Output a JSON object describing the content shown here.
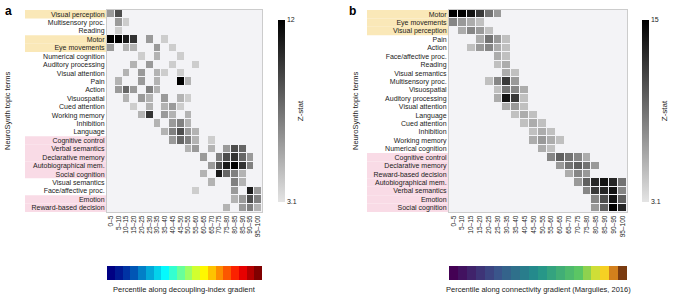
{
  "chart_data": [
    {
      "type": "heatmap",
      "panel_label": "a",
      "y_label": "NeuroSynth topic terms",
      "x_label": "Percentile along decoupling-index gradient",
      "x": [
        "0–5",
        "5–10",
        "10–15",
        "15–20",
        "20–25",
        "25–30",
        "30–35",
        "35–40",
        "40–45",
        "45–50",
        "50–55",
        "55–60",
        "60–65",
        "65–70",
        "70–75",
        "75–80",
        "80–85",
        "85–90",
        "90–95",
        "95–100"
      ],
      "y": [
        "Visual perception",
        "Multisensory proc.",
        "Reading",
        "Motor",
        "Eye movements",
        "Numerical cognition",
        "Auditory processing",
        "Visual attention",
        "Pain",
        "Action",
        "Visuospatial",
        "Cued attention",
        "Working memory",
        "Inhibition",
        "Language",
        "Cognitive control",
        "Verbal semantics",
        "Declarative memory",
        "Autobiographical mem.",
        "Social cognition",
        "Visual semantics",
        "Face/affective proc.",
        "Emotion",
        "Reward-based decision"
      ],
      "highlights": [
        {
          "color": "#fae8b8",
          "rows": [
            "Visual perception",
            "Motor",
            "Eye movements"
          ]
        },
        {
          "color": "#f9dbe6",
          "rows": [
            "Cognitive control",
            "Verbal semantics",
            "Declarative memory",
            "Autobiographical mem.",
            "Social cognition",
            "Emotion",
            "Reward-based decision"
          ]
        }
      ],
      "colorbar": {
        "title": "Z-stat",
        "range": [
          3.1,
          12
        ],
        "ticks": [
          3.1,
          12
        ]
      },
      "z": [
        [
          6,
          9,
          null,
          null,
          null,
          null,
          null,
          null,
          null,
          null,
          null,
          null,
          null,
          null,
          null,
          null,
          null,
          null,
          null,
          null
        ],
        [
          null,
          6,
          4,
          null,
          null,
          null,
          null,
          null,
          null,
          null,
          null,
          null,
          null,
          null,
          null,
          null,
          null,
          null,
          null,
          null
        ],
        [
          null,
          4,
          null,
          null,
          null,
          null,
          null,
          null,
          null,
          null,
          null,
          null,
          null,
          null,
          null,
          null,
          null,
          null,
          null,
          null
        ],
        [
          12,
          12,
          11,
          10,
          null,
          6,
          null,
          4,
          null,
          null,
          null,
          null,
          null,
          null,
          null,
          null,
          null,
          null,
          null,
          null
        ],
        [
          6,
          null,
          5,
          5,
          null,
          null,
          6,
          null,
          4,
          null,
          null,
          null,
          null,
          null,
          null,
          null,
          null,
          null,
          null,
          null
        ],
        [
          null,
          null,
          null,
          null,
          4,
          null,
          5,
          null,
          null,
          4,
          null,
          null,
          null,
          null,
          null,
          null,
          null,
          null,
          null,
          null
        ],
        [
          null,
          null,
          null,
          5,
          null,
          6,
          null,
          null,
          4,
          null,
          null,
          4,
          null,
          null,
          null,
          null,
          null,
          null,
          null,
          null
        ],
        [
          null,
          null,
          5,
          null,
          6,
          null,
          5,
          4,
          null,
          4,
          null,
          null,
          null,
          null,
          null,
          null,
          null,
          null,
          null,
          null
        ],
        [
          null,
          5,
          null,
          null,
          6,
          null,
          5,
          null,
          null,
          12,
          5,
          null,
          null,
          null,
          null,
          null,
          null,
          null,
          null,
          null
        ],
        [
          null,
          6,
          8,
          6,
          null,
          7,
          5,
          null,
          null,
          null,
          null,
          null,
          null,
          null,
          null,
          null,
          null,
          null,
          null,
          null
        ],
        [
          null,
          null,
          5,
          null,
          6,
          5,
          null,
          6,
          null,
          5,
          4,
          null,
          null,
          null,
          null,
          null,
          null,
          null,
          null,
          null
        ],
        [
          null,
          null,
          null,
          4,
          null,
          5,
          null,
          5,
          6,
          4,
          null,
          null,
          null,
          null,
          null,
          null,
          null,
          null,
          null,
          null
        ],
        [
          null,
          null,
          null,
          null,
          5,
          10,
          null,
          6,
          5,
          null,
          5,
          null,
          null,
          null,
          null,
          null,
          null,
          null,
          null,
          null
        ],
        [
          null,
          null,
          null,
          null,
          null,
          null,
          5,
          null,
          6,
          7,
          5,
          null,
          null,
          null,
          null,
          null,
          null,
          null,
          null,
          null
        ],
        [
          null,
          null,
          null,
          null,
          null,
          null,
          null,
          5,
          7,
          9,
          6,
          5,
          null,
          null,
          null,
          null,
          null,
          null,
          null,
          null
        ],
        [
          null,
          null,
          null,
          null,
          null,
          null,
          null,
          null,
          6,
          8,
          7,
          5,
          null,
          4,
          null,
          null,
          null,
          null,
          null,
          null
        ],
        [
          null,
          null,
          null,
          null,
          null,
          null,
          null,
          null,
          null,
          null,
          5,
          6,
          null,
          5,
          null,
          6,
          9,
          8,
          null,
          null
        ],
        [
          null,
          null,
          null,
          null,
          null,
          null,
          null,
          null,
          null,
          null,
          null,
          null,
          6,
          null,
          7,
          9,
          10,
          8,
          6,
          null
        ],
        [
          null,
          null,
          null,
          null,
          null,
          null,
          null,
          null,
          null,
          null,
          null,
          null,
          null,
          6,
          9,
          11,
          12,
          10,
          7,
          null
        ],
        [
          null,
          null,
          null,
          null,
          null,
          null,
          null,
          null,
          null,
          null,
          null,
          null,
          5,
          null,
          11,
          8,
          7,
          5,
          null,
          null
        ],
        [
          null,
          null,
          null,
          null,
          null,
          null,
          null,
          null,
          null,
          null,
          null,
          null,
          null,
          5,
          null,
          null,
          7,
          5,
          null,
          null
        ],
        [
          null,
          null,
          null,
          null,
          null,
          null,
          null,
          null,
          null,
          null,
          null,
          4,
          null,
          null,
          null,
          null,
          6,
          null,
          11,
          6
        ],
        [
          null,
          null,
          null,
          null,
          null,
          null,
          null,
          null,
          null,
          null,
          null,
          null,
          null,
          null,
          null,
          null,
          5,
          6,
          9,
          7
        ],
        [
          null,
          null,
          null,
          null,
          null,
          null,
          null,
          null,
          null,
          null,
          null,
          null,
          null,
          null,
          null,
          5,
          null,
          6,
          7,
          5
        ]
      ]
    },
    {
      "type": "heatmap",
      "panel_label": "b",
      "y_label": "NeuroSynth topic terms",
      "x_label": "Percentile along connectivity gradient (Margulies, 2016)",
      "x": [
        "0–5",
        "5–10",
        "10–15",
        "15–20",
        "20–25",
        "25–30",
        "30–35",
        "35–40",
        "40–45",
        "45–50",
        "50–55",
        "55–60",
        "60–65",
        "65–70",
        "70–75",
        "75–80",
        "80–85",
        "85–90",
        "90–95",
        "95–100"
      ],
      "y": [
        "Motor",
        "Eye movements",
        "Visual perception",
        "Pain",
        "Action",
        "Face/affective proc.",
        "Reading",
        "Visual semantics",
        "Multisensory proc.",
        "Visuospatial",
        "Auditory processing",
        "Visual attention",
        "Language",
        "Cued attention",
        "Inhibition",
        "Working memory",
        "Numerical cognition",
        "Cognitive control",
        "Declarative memory",
        "Reward-based decision",
        "Autobiographical mem.",
        "Verbal semantics",
        "Emotion",
        "Social cognition"
      ],
      "highlights": [
        {
          "color": "#fae8b8",
          "rows": [
            "Motor",
            "Eye movements",
            "Visual perception"
          ]
        },
        {
          "color": "#f9dbe6",
          "rows": [
            "Cognitive control",
            "Declarative memory",
            "Reward-based decision",
            "Autobiographical mem.",
            "Verbal semantics",
            "Emotion",
            "Social cognition"
          ]
        }
      ],
      "colorbar": {
        "title": "Z-stat",
        "range": [
          3.1,
          15
        ],
        "ticks": [
          3.1,
          15
        ]
      },
      "z": [
        [
          15,
          15,
          14,
          12,
          9,
          7,
          null,
          null,
          null,
          null,
          null,
          null,
          null,
          null,
          null,
          null,
          null,
          null,
          null,
          null
        ],
        [
          8,
          7,
          6,
          5,
          null,
          null,
          null,
          null,
          null,
          null,
          null,
          null,
          null,
          null,
          null,
          null,
          null,
          null,
          null,
          null
        ],
        [
          null,
          6,
          8,
          7,
          5,
          null,
          null,
          null,
          null,
          null,
          null,
          null,
          null,
          null,
          null,
          null,
          null,
          null,
          null,
          null
        ],
        [
          null,
          null,
          null,
          6,
          9,
          7,
          5,
          null,
          null,
          null,
          null,
          null,
          null,
          null,
          null,
          null,
          null,
          null,
          null,
          null
        ],
        [
          null,
          null,
          5,
          7,
          8,
          6,
          5,
          null,
          null,
          null,
          null,
          null,
          null,
          null,
          null,
          null,
          null,
          null,
          null,
          null
        ],
        [
          null,
          null,
          null,
          null,
          null,
          6,
          5,
          null,
          null,
          null,
          null,
          null,
          null,
          null,
          null,
          null,
          null,
          null,
          null,
          null
        ],
        [
          null,
          null,
          null,
          null,
          null,
          5,
          6,
          null,
          null,
          null,
          null,
          null,
          null,
          null,
          null,
          null,
          null,
          null,
          null,
          null
        ],
        [
          null,
          null,
          null,
          null,
          null,
          null,
          6,
          5,
          null,
          null,
          null,
          null,
          null,
          null,
          null,
          null,
          null,
          null,
          null,
          null
        ],
        [
          null,
          null,
          null,
          null,
          5,
          8,
          12,
          7,
          null,
          null,
          null,
          null,
          null,
          null,
          null,
          null,
          null,
          null,
          null,
          null
        ],
        [
          null,
          null,
          null,
          null,
          null,
          5,
          9,
          8,
          6,
          null,
          null,
          null,
          null,
          null,
          null,
          null,
          null,
          null,
          null,
          null
        ],
        [
          null,
          null,
          null,
          null,
          null,
          6,
          14,
          12,
          5,
          null,
          null,
          null,
          null,
          null,
          null,
          null,
          null,
          null,
          null,
          null
        ],
        [
          null,
          null,
          null,
          null,
          null,
          null,
          6,
          7,
          5,
          null,
          null,
          null,
          null,
          null,
          null,
          null,
          null,
          null,
          null,
          null
        ],
        [
          null,
          null,
          null,
          null,
          null,
          null,
          null,
          5,
          6,
          5,
          null,
          null,
          null,
          null,
          null,
          null,
          null,
          null,
          null,
          null
        ],
        [
          null,
          null,
          null,
          null,
          null,
          null,
          null,
          null,
          5,
          6,
          5,
          null,
          null,
          null,
          null,
          null,
          null,
          null,
          null,
          null
        ],
        [
          null,
          null,
          null,
          null,
          null,
          null,
          null,
          null,
          null,
          5,
          6,
          5,
          null,
          null,
          null,
          null,
          null,
          null,
          null,
          null
        ],
        [
          null,
          null,
          null,
          null,
          null,
          null,
          null,
          null,
          null,
          6,
          7,
          6,
          5,
          null,
          null,
          null,
          null,
          null,
          null,
          null
        ],
        [
          null,
          null,
          null,
          null,
          null,
          null,
          null,
          null,
          null,
          null,
          6,
          5,
          null,
          null,
          null,
          null,
          null,
          null,
          null,
          null
        ],
        [
          null,
          null,
          null,
          null,
          null,
          null,
          null,
          null,
          null,
          null,
          null,
          8,
          10,
          9,
          8,
          6,
          null,
          null,
          null,
          null
        ],
        [
          null,
          null,
          null,
          null,
          null,
          null,
          null,
          null,
          null,
          null,
          null,
          null,
          7,
          9,
          10,
          9,
          7,
          null,
          null,
          null
        ],
        [
          null,
          null,
          null,
          null,
          null,
          null,
          null,
          null,
          null,
          null,
          null,
          null,
          null,
          6,
          8,
          7,
          null,
          null,
          null,
          null
        ],
        [
          null,
          null,
          null,
          null,
          null,
          null,
          null,
          null,
          null,
          null,
          null,
          null,
          null,
          null,
          7,
          10,
          13,
          14,
          13,
          9
        ],
        [
          null,
          null,
          null,
          null,
          null,
          null,
          null,
          null,
          null,
          null,
          null,
          null,
          null,
          null,
          null,
          8,
          12,
          13,
          14,
          8
        ],
        [
          null,
          null,
          null,
          null,
          null,
          null,
          null,
          null,
          null,
          null,
          null,
          null,
          null,
          null,
          null,
          null,
          8,
          11,
          14,
          10
        ],
        [
          null,
          null,
          null,
          null,
          null,
          null,
          null,
          null,
          null,
          null,
          null,
          null,
          null,
          null,
          null,
          null,
          7,
          10,
          15,
          13
        ]
      ]
    }
  ]
}
